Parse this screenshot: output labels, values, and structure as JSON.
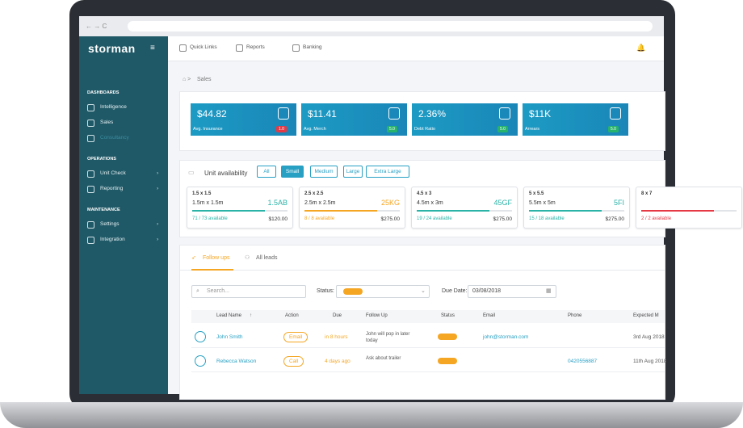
{
  "browser": {
    "nav": "← → C"
  },
  "sidebar": {
    "logo": "storman",
    "sections": [
      {
        "title": "DASHBOARDS",
        "items": [
          "Intelligence",
          "Sales",
          "Consultancy"
        ]
      },
      {
        "title": "OPERATIONS",
        "items": [
          "Unit Check",
          "Reporting"
        ]
      },
      {
        "title": "MAINTENANCE",
        "items": [
          "Settings",
          "Integration"
        ]
      }
    ]
  },
  "topbar": {
    "links": [
      "Quick Links",
      "Reports",
      "Banking"
    ]
  },
  "breadcrumb": "Sales",
  "stats": [
    {
      "value": "$44.82",
      "label": "Avg. Insurance",
      "badge": "1.0",
      "badge_color": "#e53945"
    },
    {
      "value": "$11.41",
      "label": "Avg. Merch",
      "badge": "5.0",
      "badge_color": "#27b36b"
    },
    {
      "value": "2.36%",
      "label": "Debt Ratio",
      "badge": "5.0",
      "badge_color": "#27b36b"
    },
    {
      "value": "$11K",
      "label": "Arrears",
      "badge": "5.0",
      "badge_color": "#27b36b"
    }
  ],
  "units": {
    "title": "Unit availability",
    "filters": [
      "All",
      "Small",
      "Medium",
      "Large",
      "Extra Large"
    ],
    "active_filter": 1,
    "cards": [
      {
        "size": "1.5 x 1.5",
        "dims": "1.5m x 1.5m",
        "code": "1.5AB",
        "available": "71 / 73 available",
        "price": "$120.00",
        "color": "#2bb3a8"
      },
      {
        "size": "2.5 x 2.5",
        "dims": "2.5m x 2.5m",
        "code": "25KG",
        "available": "8 / 8 available",
        "price": "$275.00",
        "color": "#f5a623"
      },
      {
        "size": "4.5 x 3",
        "dims": "4.5m x 3m",
        "code": "45GF",
        "available": "19 / 24 available",
        "price": "$275.00",
        "color": "#2bb3a8"
      },
      {
        "size": "5 x 5.5",
        "dims": "5.5m x 5m",
        "code": "5FI",
        "available": "15 / 18 available",
        "price": "$275.00",
        "color": "#2bb3a8"
      },
      {
        "size": "8 x 7",
        "dims": "",
        "code": "",
        "available": "2 / 2 available",
        "price": "",
        "color": "#e53945"
      }
    ]
  },
  "followups": {
    "tabs": [
      "Follow ups",
      "All leads"
    ],
    "search": "Search...",
    "status_label": "Status:",
    "due_label": "Due Date:",
    "due_date": "03/08/2018",
    "columns": [
      "Lead Name",
      "Action",
      "Due",
      "Follow Up",
      "Status",
      "Email",
      "Phone",
      "Expected M"
    ],
    "rows": [
      {
        "name": "John Smith",
        "action": "Email",
        "due": "in 8 hours",
        "follow": "John will pop in later today",
        "email": "john@storman.com",
        "phone": "",
        "expected": "3rd Aug 2018"
      },
      {
        "name": "Rebecca Watson",
        "action": "Call",
        "due": "4 days ago",
        "follow": "Ask about trailer",
        "email": "",
        "phone": "0420556887",
        "expected": "11th Aug 2018"
      }
    ]
  }
}
